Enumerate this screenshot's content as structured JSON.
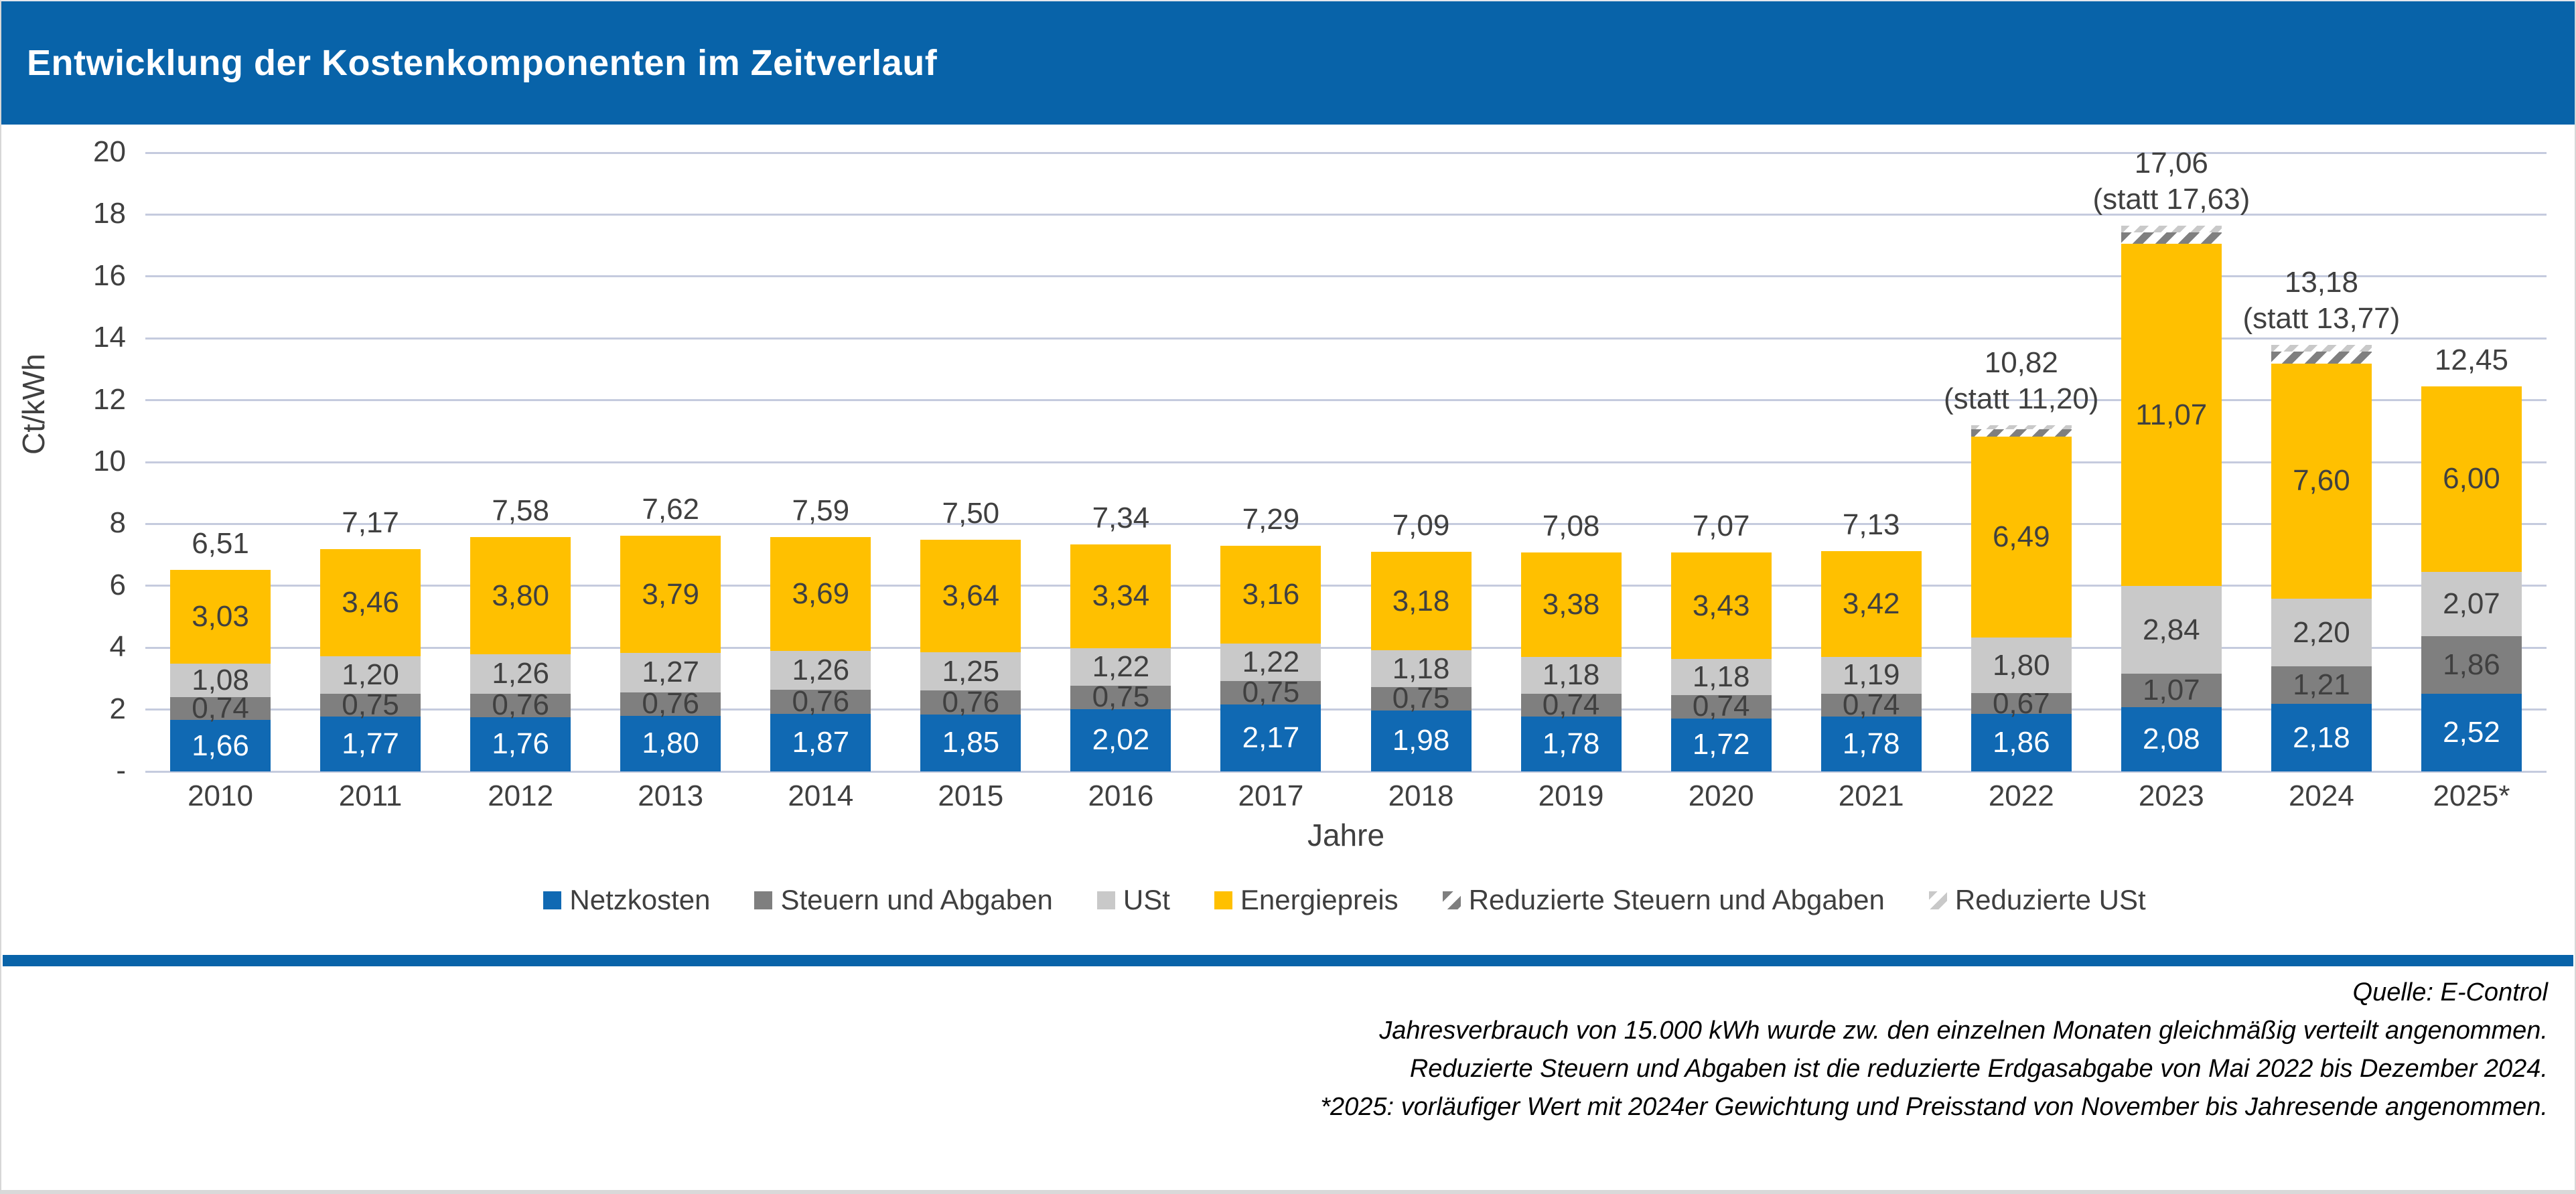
{
  "header": {
    "title": "Entwicklung der Kostenkomponenten im Zeitverlauf"
  },
  "colors": {
    "header_blue": "#0863a9",
    "bar_blue": "#1069b3",
    "dark_gray": "#7f7f7f",
    "light_gray": "#c9c9c9",
    "yellow": "#ffc000",
    "gridline": "#c5cbde",
    "value_text": "#404040",
    "value_text_on_blue": "#ffffff"
  },
  "chart_data": {
    "type": "bar",
    "stacked": true,
    "title": "Entwicklung der Kostenkomponenten im Zeitverlauf",
    "xlabel": "Jahre",
    "ylabel": "Ct/kWh",
    "ylim": [
      0,
      20
    ],
    "ytick_step": 2,
    "zero_tick_label": "-",
    "grid": true,
    "legend_position": "bottom",
    "categories": [
      "2010",
      "2011",
      "2012",
      "2013",
      "2014",
      "2015",
      "2016",
      "2017",
      "2018",
      "2019",
      "2020",
      "2021",
      "2022",
      "2023",
      "2024",
      "2025*"
    ],
    "series": [
      {
        "name": "Netzkosten",
        "color": "#1069b3",
        "label_color": "#ffffff",
        "values": [
          1.66,
          1.77,
          1.76,
          1.8,
          1.87,
          1.85,
          2.02,
          2.17,
          1.98,
          1.78,
          1.72,
          1.78,
          1.86,
          2.08,
          2.18,
          2.52
        ]
      },
      {
        "name": "Steuern und Abgaben",
        "color": "#7f7f7f",
        "label_color": "#404040",
        "values": [
          0.74,
          0.75,
          0.76,
          0.76,
          0.76,
          0.76,
          0.75,
          0.75,
          0.75,
          0.74,
          0.74,
          0.74,
          0.67,
          1.07,
          1.21,
          1.86
        ]
      },
      {
        "name": "USt",
        "color": "#c9c9c9",
        "label_color": "#404040",
        "values": [
          1.08,
          1.2,
          1.26,
          1.27,
          1.26,
          1.25,
          1.22,
          1.22,
          1.18,
          1.18,
          1.18,
          1.19,
          1.8,
          2.84,
          2.2,
          2.07
        ]
      },
      {
        "name": "Energiepreis",
        "color": "#ffc000",
        "label_color": "#404040",
        "values": [
          3.03,
          3.46,
          3.8,
          3.79,
          3.69,
          3.64,
          3.34,
          3.16,
          3.18,
          3.38,
          3.43,
          3.42,
          6.49,
          11.07,
          7.6,
          6.0
        ]
      },
      {
        "name": "Reduzierte Steuern und Abgaben",
        "hatch": "dark",
        "no_label": true,
        "values": [
          0,
          0,
          0,
          0,
          0,
          0,
          0,
          0,
          0,
          0,
          0,
          0,
          0.25,
          0.37,
          0.38,
          0
        ]
      },
      {
        "name": "Reduzierte USt",
        "hatch": "light",
        "no_label": true,
        "values": [
          0,
          0,
          0,
          0,
          0,
          0,
          0,
          0,
          0,
          0,
          0,
          0,
          0.13,
          0.2,
          0.21,
          0
        ]
      }
    ],
    "totals": [
      "6,51",
      "7,17",
      "7,58",
      "7,62",
      "7,59",
      "7,50",
      "7,34",
      "7,29",
      "7,09",
      "7,08",
      "7,07",
      "7,13",
      "10,82",
      "17,06",
      "13,18",
      "12,45"
    ],
    "statt": [
      null,
      null,
      null,
      null,
      null,
      null,
      null,
      null,
      null,
      null,
      null,
      null,
      "(statt 11,20)",
      "(statt 17,63)",
      "(statt 13,77)",
      null
    ]
  },
  "legend": {
    "items": [
      {
        "label": "Netzkosten",
        "swatch": "solid",
        "color": "#1069b3"
      },
      {
        "label": "Steuern und Abgaben",
        "swatch": "solid",
        "color": "#7f7f7f"
      },
      {
        "label": "USt",
        "swatch": "solid",
        "color": "#c9c9c9"
      },
      {
        "label": "Energiepreis",
        "swatch": "solid",
        "color": "#ffc000"
      },
      {
        "label": "Reduzierte Steuern und Abgaben",
        "swatch": "hatch-dark",
        "color": "#7f7f7f"
      },
      {
        "label": "Reduzierte USt",
        "swatch": "hatch-light",
        "color": "#c9c9c9"
      }
    ]
  },
  "footer": {
    "source": "Quelle: E-Control",
    "notes": [
      "Jahresverbrauch von 15.000 kWh wurde zw. den einzelnen Monaten gleichmäßig verteilt angenommen.",
      "Reduzierte Steuern und Abgaben ist die reduzierte Erdgasabgabe von Mai 2022 bis Dezember 2024.",
      "*2025: vorläufiger Wert mit 2024er Gewichtung und Preisstand von November bis Jahresende angenommen."
    ]
  }
}
